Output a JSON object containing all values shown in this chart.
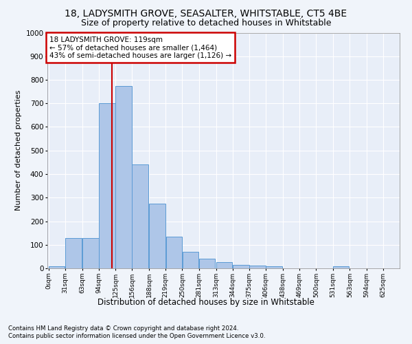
{
  "title1": "18, LADYSMITH GROVE, SEASALTER, WHITSTABLE, CT5 4BE",
  "title2": "Size of property relative to detached houses in Whitstable",
  "xlabel": "Distribution of detached houses by size in Whitstable",
  "ylabel": "Number of detached properties",
  "footer1": "Contains HM Land Registry data © Crown copyright and database right 2024.",
  "footer2": "Contains public sector information licensed under the Open Government Licence v3.0.",
  "annotation_line1": "18 LADYSMITH GROVE: 119sqm",
  "annotation_line2": "← 57% of detached houses are smaller (1,464)",
  "annotation_line3": "43% of semi-detached houses are larger (1,126) →",
  "bar_color": "#aec6e8",
  "bar_edge_color": "#5b9bd5",
  "vline_color": "#cc0000",
  "vline_x": 119,
  "categories": [
    "0sqm",
    "31sqm",
    "63sqm",
    "94sqm",
    "125sqm",
    "156sqm",
    "188sqm",
    "219sqm",
    "250sqm",
    "281sqm",
    "313sqm",
    "344sqm",
    "375sqm",
    "406sqm",
    "438sqm",
    "469sqm",
    "500sqm",
    "531sqm",
    "563sqm",
    "594sqm",
    "625sqm"
  ],
  "bin_edges": [
    0,
    31,
    63,
    94,
    125,
    156,
    188,
    219,
    250,
    281,
    313,
    344,
    375,
    406,
    438,
    469,
    500,
    531,
    563,
    594,
    625
  ],
  "values": [
    8,
    128,
    128,
    700,
    775,
    440,
    275,
    135,
    70,
    40,
    25,
    15,
    12,
    8,
    0,
    0,
    0,
    10,
    0,
    0,
    0
  ],
  "ylim": [
    0,
    1000
  ],
  "yticks": [
    0,
    100,
    200,
    300,
    400,
    500,
    600,
    700,
    800,
    900,
    1000
  ],
  "background_color": "#f0f4fa",
  "plot_background": "#e8eef8",
  "grid_color": "#ffffff",
  "title1_fontsize": 10,
  "title2_fontsize": 9
}
